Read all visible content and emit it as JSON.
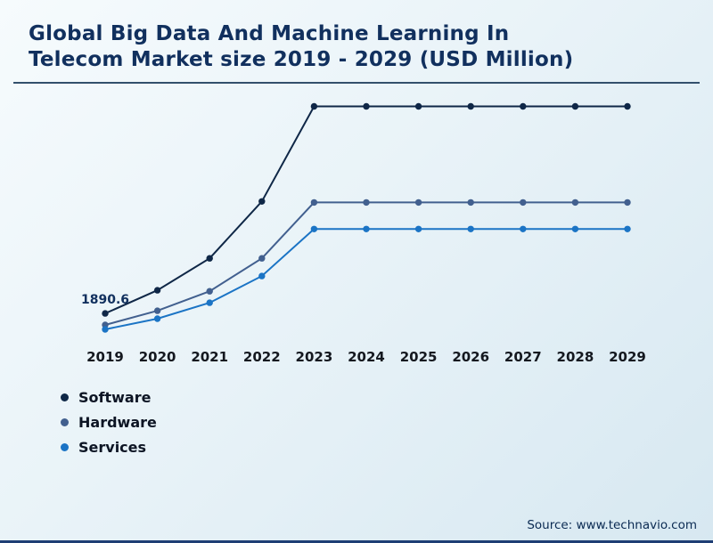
{
  "title": {
    "line1": "Global Big Data And Machine Learning In",
    "line2": "Telecom Market size 2019 - 2029 (USD Million)"
  },
  "annotation": {
    "label": "1890.6",
    "series": "Software",
    "year": 2019
  },
  "legend": [
    {
      "label": "Software",
      "color": "#0f2747"
    },
    {
      "label": "Hardware",
      "color": "#42608f"
    },
    {
      "label": "Services",
      "color": "#1b74c5"
    }
  ],
  "source": {
    "text": "Source: www.technavio.com"
  },
  "colors": {
    "title": "#11305e",
    "title_rule": "#33506c",
    "axis_label": "#14181f",
    "bottom_bar": "#1e3e74",
    "background_start": "#f6fbfd",
    "background_end": "#d7e8f1"
  },
  "chart_data": {
    "type": "line",
    "title": "Global Big Data And Machine Learning In Telecom Market size 2019 - 2029 (USD Million)",
    "xlabel": "",
    "ylabel": "USD Million",
    "x": [
      2019,
      2020,
      2021,
      2022,
      2023,
      2024,
      2025,
      2026,
      2027,
      2028,
      2029
    ],
    "ylim": [
      0,
      15500
    ],
    "grid": false,
    "legend_position": "bottom-left",
    "series": [
      {
        "name": "Software",
        "color": "#0f2747",
        "values": [
          1890.6,
          3380,
          5440,
          9110,
          15240,
          15240,
          15240,
          15240,
          15240,
          15240,
          15240
        ]
      },
      {
        "name": "Hardware",
        "color": "#42608f",
        "values": [
          1150,
          2060,
          3320,
          5440,
          9050,
          9050,
          9050,
          9050,
          9050,
          9050,
          9050
        ]
      },
      {
        "name": "Services",
        "color": "#1b74c5",
        "values": [
          860,
          1550,
          2580,
          4300,
          7330,
          7330,
          7330,
          7330,
          7330,
          7330,
          7330
        ]
      }
    ]
  }
}
